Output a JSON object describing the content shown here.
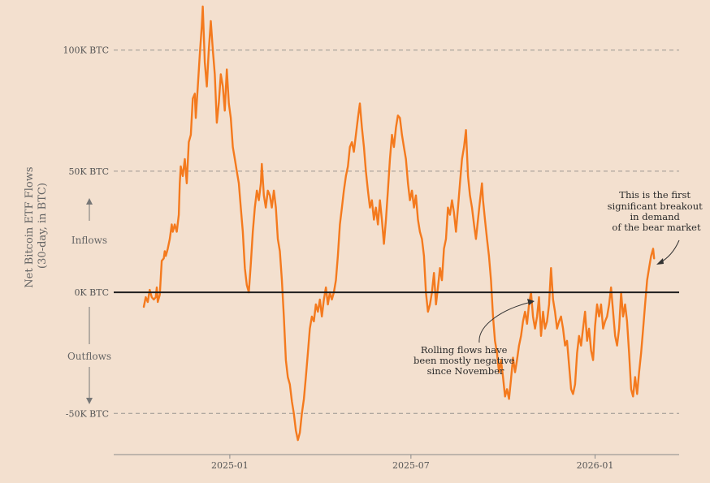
{
  "chart_data": {
    "type": "line",
    "ylabel_lines": [
      "Net Bitcoin ETF Flows",
      "(30-day, in BTC)"
    ],
    "y_ticks": [
      {
        "value": 100000,
        "label": "100K BTC"
      },
      {
        "value": 50000,
        "label": "50K BTC"
      },
      {
        "value": 0,
        "label": "0K BTC"
      },
      {
        "value": -50000,
        "label": "-50K BTC"
      }
    ],
    "x_ticks": [
      {
        "value": "2025-01-01",
        "label": "2025-01"
      },
      {
        "value": "2025-07-01",
        "label": "2025-07"
      },
      {
        "value": "2026-01-01",
        "label": "2026-01"
      }
    ],
    "xlim": [
      "2024-09-07",
      "2026-03-26"
    ],
    "ylim": [
      -67000,
      118000
    ],
    "grid": "horizontal dashed at ticks",
    "colors": {
      "line": "#f47a1e",
      "zero_line": "#1f1f1f",
      "grid": "#9a9590",
      "background": "#f3e0cf"
    },
    "side_labels": {
      "inflows": "Inflows",
      "outflows": "Outflows"
    },
    "annotations": [
      {
        "text_lines": [
          "This is the first",
          "significant breakout",
          "in demand",
          "of the bear market"
        ]
      },
      {
        "text_lines": [
          "Rolling flows have",
          "been mostly negative",
          "since November"
        ]
      }
    ],
    "series": [
      {
        "points": [
          [
            "2024-10-07",
            -6000
          ],
          [
            "2024-10-09",
            -2000
          ],
          [
            "2024-10-11",
            -4000
          ],
          [
            "2024-10-13",
            1000
          ],
          [
            "2024-10-15",
            -2000
          ],
          [
            "2024-10-17",
            -3000
          ],
          [
            "2024-10-19",
            -2000
          ],
          [
            "2024-10-20",
            2000
          ],
          [
            "2024-10-21",
            -4000
          ],
          [
            "2024-10-23",
            -1000
          ],
          [
            "2024-10-25",
            13000
          ],
          [
            "2024-10-27",
            14000
          ],
          [
            "2024-10-28",
            17000
          ],
          [
            "2024-10-29",
            15000
          ],
          [
            "2024-10-31",
            18000
          ],
          [
            "2024-11-02",
            22000
          ],
          [
            "2024-11-04",
            28000
          ],
          [
            "2024-11-05",
            25000
          ],
          [
            "2024-11-07",
            28000
          ],
          [
            "2024-11-09",
            25000
          ],
          [
            "2024-11-11",
            32000
          ],
          [
            "2024-11-12",
            45000
          ],
          [
            "2024-11-13",
            52000
          ],
          [
            "2024-11-15",
            48000
          ],
          [
            "2024-11-17",
            55000
          ],
          [
            "2024-11-19",
            45000
          ],
          [
            "2024-11-21",
            62000
          ],
          [
            "2024-11-23",
            65000
          ],
          [
            "2024-11-25",
            80000
          ],
          [
            "2024-11-27",
            82000
          ],
          [
            "2024-11-28",
            72000
          ],
          [
            "2024-11-30",
            85000
          ],
          [
            "2024-12-02",
            98000
          ],
          [
            "2024-12-04",
            110000
          ],
          [
            "2024-12-05",
            118000
          ],
          [
            "2024-12-07",
            95000
          ],
          [
            "2024-12-09",
            85000
          ],
          [
            "2024-12-11",
            100000
          ],
          [
            "2024-12-13",
            112000
          ],
          [
            "2024-12-15",
            100000
          ],
          [
            "2024-12-17",
            90000
          ],
          [
            "2024-12-19",
            70000
          ],
          [
            "2024-12-21",
            78000
          ],
          [
            "2024-12-23",
            90000
          ],
          [
            "2024-12-25",
            85000
          ],
          [
            "2024-12-27",
            75000
          ],
          [
            "2024-12-29",
            92000
          ],
          [
            "2024-12-31",
            78000
          ],
          [
            "2025-01-02",
            72000
          ],
          [
            "2025-01-04",
            60000
          ],
          [
            "2025-01-06",
            55000
          ],
          [
            "2025-01-08",
            50000
          ],
          [
            "2025-01-10",
            45000
          ],
          [
            "2025-01-12",
            35000
          ],
          [
            "2025-01-14",
            25000
          ],
          [
            "2025-01-16",
            10000
          ],
          [
            "2025-01-18",
            3000
          ],
          [
            "2025-01-20",
            0
          ],
          [
            "2025-01-22",
            12000
          ],
          [
            "2025-01-24",
            25000
          ],
          [
            "2025-01-26",
            35000
          ],
          [
            "2025-01-28",
            42000
          ],
          [
            "2025-01-30",
            38000
          ],
          [
            "2025-02-01",
            45000
          ],
          [
            "2025-02-02",
            53000
          ],
          [
            "2025-02-04",
            40000
          ],
          [
            "2025-02-06",
            35000
          ],
          [
            "2025-02-08",
            42000
          ],
          [
            "2025-02-10",
            40000
          ],
          [
            "2025-02-12",
            35000
          ],
          [
            "2025-02-14",
            42000
          ],
          [
            "2025-02-16",
            35000
          ],
          [
            "2025-02-18",
            22000
          ],
          [
            "2025-02-20",
            17000
          ],
          [
            "2025-02-22",
            5000
          ],
          [
            "2025-02-24",
            -10000
          ],
          [
            "2025-02-26",
            -28000
          ],
          [
            "2025-02-28",
            -35000
          ],
          [
            "2025-03-02",
            -38000
          ],
          [
            "2025-03-04",
            -45000
          ],
          [
            "2025-03-06",
            -50000
          ],
          [
            "2025-03-08",
            -57000
          ],
          [
            "2025-03-10",
            -61000
          ],
          [
            "2025-03-12",
            -58000
          ],
          [
            "2025-03-14",
            -50000
          ],
          [
            "2025-03-16",
            -44000
          ],
          [
            "2025-03-18",
            -35000
          ],
          [
            "2025-03-20",
            -25000
          ],
          [
            "2025-03-22",
            -15000
          ],
          [
            "2025-03-24",
            -10000
          ],
          [
            "2025-03-26",
            -12000
          ],
          [
            "2025-03-28",
            -5000
          ],
          [
            "2025-03-30",
            -8000
          ],
          [
            "2025-04-01",
            -3000
          ],
          [
            "2025-04-03",
            -10000
          ],
          [
            "2025-04-05",
            -3000
          ],
          [
            "2025-04-07",
            2000
          ],
          [
            "2025-04-09",
            -5000
          ],
          [
            "2025-04-11",
            0
          ],
          [
            "2025-04-13",
            -3000
          ],
          [
            "2025-04-15",
            0
          ],
          [
            "2025-04-17",
            5000
          ],
          [
            "2025-04-19",
            15000
          ],
          [
            "2025-04-21",
            28000
          ],
          [
            "2025-04-23",
            35000
          ],
          [
            "2025-04-25",
            42000
          ],
          [
            "2025-04-27",
            48000
          ],
          [
            "2025-04-29",
            52000
          ],
          [
            "2025-05-01",
            60000
          ],
          [
            "2025-05-03",
            62000
          ],
          [
            "2025-05-05",
            58000
          ],
          [
            "2025-05-07",
            65000
          ],
          [
            "2025-05-09",
            72000
          ],
          [
            "2025-05-11",
            78000
          ],
          [
            "2025-05-13",
            68000
          ],
          [
            "2025-05-15",
            60000
          ],
          [
            "2025-05-17",
            50000
          ],
          [
            "2025-05-19",
            42000
          ],
          [
            "2025-05-21",
            35000
          ],
          [
            "2025-05-23",
            38000
          ],
          [
            "2025-05-25",
            30000
          ],
          [
            "2025-05-27",
            35000
          ],
          [
            "2025-05-29",
            28000
          ],
          [
            "2025-05-31",
            38000
          ],
          [
            "2025-06-02",
            30000
          ],
          [
            "2025-06-04",
            20000
          ],
          [
            "2025-06-06",
            30000
          ],
          [
            "2025-06-08",
            42000
          ],
          [
            "2025-06-10",
            55000
          ],
          [
            "2025-06-12",
            65000
          ],
          [
            "2025-06-14",
            60000
          ],
          [
            "2025-06-16",
            68000
          ],
          [
            "2025-06-18",
            73000
          ],
          [
            "2025-06-20",
            72000
          ],
          [
            "2025-06-22",
            65000
          ],
          [
            "2025-06-24",
            60000
          ],
          [
            "2025-06-26",
            55000
          ],
          [
            "2025-06-28",
            45000
          ],
          [
            "2025-06-30",
            38000
          ],
          [
            "2025-07-02",
            42000
          ],
          [
            "2025-07-04",
            35000
          ],
          [
            "2025-07-06",
            40000
          ],
          [
            "2025-07-08",
            30000
          ],
          [
            "2025-07-10",
            25000
          ],
          [
            "2025-07-12",
            22000
          ],
          [
            "2025-07-14",
            15000
          ],
          [
            "2025-07-16",
            0
          ],
          [
            "2025-07-18",
            -8000
          ],
          [
            "2025-07-20",
            -5000
          ],
          [
            "2025-07-22",
            0
          ],
          [
            "2025-07-24",
            8000
          ],
          [
            "2025-07-26",
            -5000
          ],
          [
            "2025-07-28",
            2000
          ],
          [
            "2025-07-30",
            10000
          ],
          [
            "2025-08-01",
            5000
          ],
          [
            "2025-08-03",
            18000
          ],
          [
            "2025-08-05",
            22000
          ],
          [
            "2025-08-07",
            35000
          ],
          [
            "2025-08-09",
            32000
          ],
          [
            "2025-08-11",
            38000
          ],
          [
            "2025-08-13",
            33000
          ],
          [
            "2025-08-15",
            25000
          ],
          [
            "2025-08-17",
            35000
          ],
          [
            "2025-08-19",
            45000
          ],
          [
            "2025-08-21",
            55000
          ],
          [
            "2025-08-23",
            60000
          ],
          [
            "2025-08-25",
            67000
          ],
          [
            "2025-08-27",
            48000
          ],
          [
            "2025-08-29",
            40000
          ],
          [
            "2025-08-31",
            35000
          ],
          [
            "2025-09-02",
            28000
          ],
          [
            "2025-09-04",
            22000
          ],
          [
            "2025-09-06",
            30000
          ],
          [
            "2025-09-08",
            38000
          ],
          [
            "2025-09-10",
            45000
          ],
          [
            "2025-09-11",
            38000
          ],
          [
            "2025-09-13",
            30000
          ],
          [
            "2025-09-15",
            22000
          ],
          [
            "2025-09-17",
            15000
          ],
          [
            "2025-09-19",
            5000
          ],
          [
            "2025-09-21",
            -10000
          ],
          [
            "2025-09-23",
            -20000
          ],
          [
            "2025-09-25",
            -25000
          ],
          [
            "2025-09-27",
            -33000
          ],
          [
            "2025-09-29",
            -28000
          ],
          [
            "2025-10-01",
            -35000
          ],
          [
            "2025-10-03",
            -43000
          ],
          [
            "2025-10-05",
            -40000
          ],
          [
            "2025-10-07",
            -44000
          ],
          [
            "2025-10-09",
            -36000
          ],
          [
            "2025-10-11",
            -27000
          ],
          [
            "2025-10-13",
            -33000
          ],
          [
            "2025-10-15",
            -28000
          ],
          [
            "2025-10-17",
            -22000
          ],
          [
            "2025-10-19",
            -18000
          ],
          [
            "2025-10-21",
            -12000
          ],
          [
            "2025-10-23",
            -8000
          ],
          [
            "2025-10-25",
            -13000
          ],
          [
            "2025-10-27",
            -5000
          ],
          [
            "2025-10-29",
            0
          ],
          [
            "2025-10-31",
            -10000
          ],
          [
            "2025-11-02",
            -15000
          ],
          [
            "2025-11-04",
            -10000
          ],
          [
            "2025-11-06",
            -2000
          ],
          [
            "2025-11-08",
            -18000
          ],
          [
            "2025-11-10",
            -8000
          ],
          [
            "2025-11-12",
            -15000
          ],
          [
            "2025-11-14",
            -12000
          ],
          [
            "2025-11-16",
            -5000
          ],
          [
            "2025-11-18",
            10000
          ],
          [
            "2025-11-20",
            -3000
          ],
          [
            "2025-11-22",
            -8000
          ],
          [
            "2025-11-24",
            -15000
          ],
          [
            "2025-11-26",
            -12000
          ],
          [
            "2025-11-28",
            -10000
          ],
          [
            "2025-11-30",
            -15000
          ],
          [
            "2025-12-02",
            -22000
          ],
          [
            "2025-12-04",
            -20000
          ],
          [
            "2025-12-06",
            -30000
          ],
          [
            "2025-12-08",
            -40000
          ],
          [
            "2025-12-10",
            -42000
          ],
          [
            "2025-12-12",
            -38000
          ],
          [
            "2025-12-14",
            -25000
          ],
          [
            "2025-12-16",
            -18000
          ],
          [
            "2025-12-18",
            -22000
          ],
          [
            "2025-12-20",
            -15000
          ],
          [
            "2025-12-22",
            -8000
          ],
          [
            "2025-12-24",
            -20000
          ],
          [
            "2025-12-26",
            -15000
          ],
          [
            "2025-12-28",
            -24000
          ],
          [
            "2025-12-30",
            -28000
          ],
          [
            "2026-01-01",
            -14000
          ],
          [
            "2026-01-03",
            -5000
          ],
          [
            "2026-01-05",
            -10000
          ],
          [
            "2026-01-07",
            -5000
          ],
          [
            "2026-01-09",
            -15000
          ],
          [
            "2026-01-11",
            -12000
          ],
          [
            "2026-01-13",
            -10000
          ],
          [
            "2026-01-15",
            -5000
          ],
          [
            "2026-01-17",
            2000
          ],
          [
            "2026-01-19",
            -8000
          ],
          [
            "2026-01-21",
            -18000
          ],
          [
            "2026-01-23",
            -22000
          ],
          [
            "2026-01-25",
            -15000
          ],
          [
            "2026-01-27",
            0
          ],
          [
            "2026-01-29",
            -10000
          ],
          [
            "2026-01-31",
            -5000
          ],
          [
            "2026-02-02",
            -12000
          ],
          [
            "2026-02-04",
            -25000
          ],
          [
            "2026-02-06",
            -40000
          ],
          [
            "2026-02-08",
            -43000
          ],
          [
            "2026-02-10",
            -35000
          ],
          [
            "2026-02-12",
            -42000
          ],
          [
            "2026-02-14",
            -33000
          ],
          [
            "2026-02-16",
            -25000
          ],
          [
            "2026-02-18",
            -15000
          ],
          [
            "2026-02-20",
            -5000
          ],
          [
            "2026-02-22",
            5000
          ],
          [
            "2026-02-24",
            10000
          ],
          [
            "2026-02-26",
            15000
          ],
          [
            "2026-02-28",
            18000
          ],
          [
            "2026-03-01",
            14000
          ]
        ]
      }
    ]
  }
}
